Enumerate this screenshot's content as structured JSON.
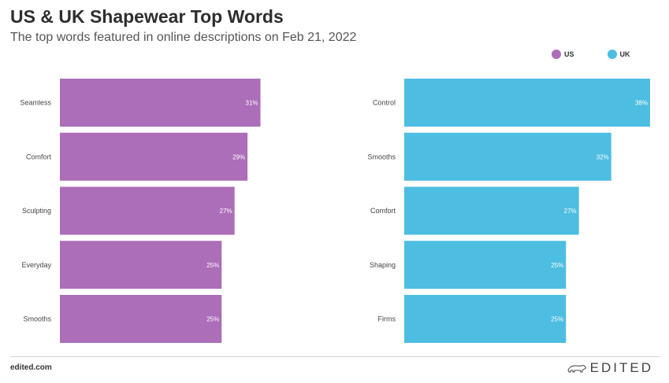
{
  "title": "US & UK Shapewear Top Words",
  "subtitle": "The top words featured in online descriptions on Feb 21, 2022",
  "legend": [
    {
      "label": "US",
      "color": "#ac6db9"
    },
    {
      "label": "UK",
      "color": "#4dbde2"
    }
  ],
  "chart_data": [
    {
      "type": "bar",
      "orientation": "horizontal",
      "title": "",
      "series": [
        {
          "name": "US",
          "color": "#ac6db9",
          "values": [
            31,
            29,
            27,
            25,
            25
          ]
        }
      ],
      "categories": [
        "Seamless",
        "Comfort",
        "Sculpting",
        "Everyday",
        "Smooths"
      ],
      "value_labels": [
        "31%",
        "29%",
        "27%",
        "25%",
        "25%"
      ],
      "xlim": [
        0,
        38
      ],
      "grid": false
    },
    {
      "type": "bar",
      "orientation": "horizontal",
      "title": "",
      "series": [
        {
          "name": "UK",
          "color": "#4dbde2",
          "values": [
            38,
            32,
            27,
            25,
            25
          ]
        }
      ],
      "categories": [
        "Control",
        "Smooths",
        "Comfort",
        "Shaping",
        "Firms"
      ],
      "value_labels": [
        "38%",
        "32%",
        "27%",
        "25%",
        "25%"
      ],
      "xlim": [
        0,
        38
      ],
      "grid": false
    }
  ],
  "footer": {
    "source": "edited.com",
    "brand": "EDITED",
    "brand_icon": "polar-bear-icon"
  }
}
